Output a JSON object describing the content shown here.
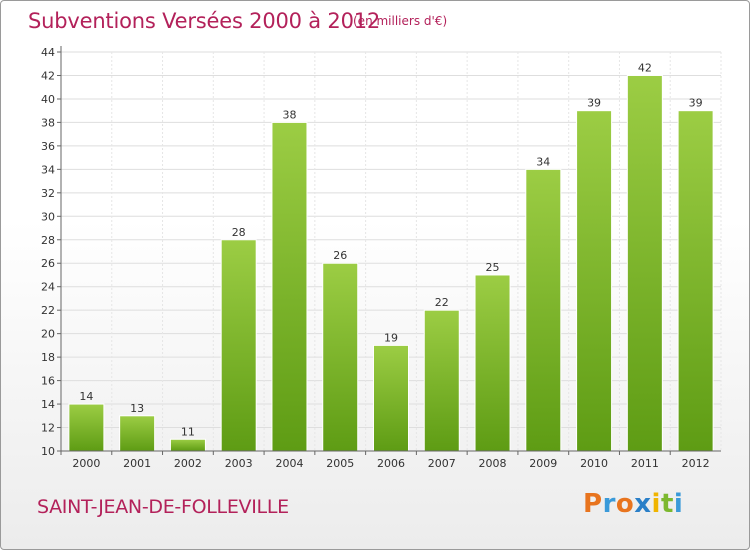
{
  "header": {
    "title": "Subventions Versées 2000 à 2012",
    "unit": "(en milliers d'€)"
  },
  "footer": {
    "commune": "SAINT-JEAN-DE-FOLLEVILLE",
    "logo_text": "Proxiti"
  },
  "colors": {
    "title": "#b3215a",
    "bar_top": "#9ccd44",
    "bar_bottom": "#5e9c14"
  },
  "chart_data": {
    "type": "bar",
    "title": "Subventions Versées 2000 à 2012",
    "subtitle": "(en milliers d'€)",
    "categories": [
      "2000",
      "2001",
      "2002",
      "2003",
      "2004",
      "2005",
      "2006",
      "2007",
      "2008",
      "2009",
      "2010",
      "2011",
      "2012"
    ],
    "values": [
      14,
      13,
      11,
      28,
      38,
      26,
      19,
      22,
      25,
      34,
      39,
      42,
      39
    ],
    "ylim": [
      10,
      44
    ],
    "yticks": [
      10,
      12,
      14,
      16,
      18,
      20,
      22,
      24,
      26,
      28,
      30,
      32,
      34,
      36,
      38,
      40,
      42,
      44
    ],
    "grid": true
  }
}
